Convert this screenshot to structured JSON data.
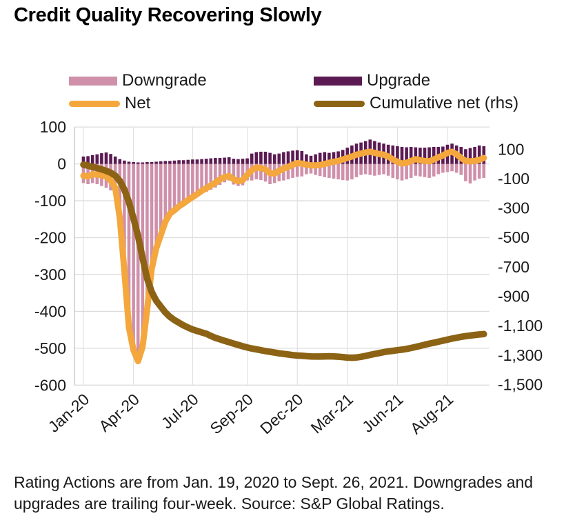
{
  "title": "Credit Quality Recovering Slowly",
  "legend": {
    "items": [
      {
        "label": "Downgrade",
        "swatch": "bar",
        "color": "#cf90aa"
      },
      {
        "label": "Upgrade",
        "swatch": "bar",
        "color": "#5b1a52"
      },
      {
        "label": "Net",
        "swatch": "line",
        "color": "#f4a73c"
      },
      {
        "label": "Cumulative net (rhs)",
        "swatch": "line",
        "color": "#8c6315"
      }
    ]
  },
  "footnote": {
    "line1": "Rating Actions are from Jan. 19, 2020 to Sept. 26, 2021. Downgrades and",
    "line2": "upgrades are trailing four-week. Source: S&P Global Ratings."
  },
  "chart_data": {
    "type": "combo-bar-line",
    "n_points": 89,
    "x_tick_indices": [
      0,
      11,
      24,
      36,
      47,
      58,
      69,
      80
    ],
    "x_tick_labels": [
      "Jan-20",
      "Apr-20",
      "Jul-20",
      "Sep-20",
      "Dec-20",
      "Mar-21",
      "Jun-21",
      "Aug-21"
    ],
    "left_axis": {
      "ticks": [
        100,
        0,
        -100,
        -200,
        -300,
        -400,
        -500,
        -600
      ],
      "range": [
        100,
        -600
      ]
    },
    "right_axis": {
      "tick_values": [
        100,
        -100,
        -300,
        -500,
        -700,
        -900,
        -1100,
        -1300,
        -1500
      ],
      "tick_labels": [
        "100",
        "-100",
        "-300",
        "-500",
        "-700",
        "-900",
        "-1,100",
        "-1,300",
        "-1,500"
      ],
      "range": [
        100,
        -1500
      ]
    },
    "grid": true,
    "legend_position": "top",
    "colors": {
      "grid": "#dcdcdc",
      "axis": "#c4c4c4",
      "text": "#1a1a1a"
    },
    "series": [
      {
        "name": "Downgrade",
        "type": "bar",
        "axis": "left",
        "color": "#cf90aa",
        "values": [
          -52,
          -55,
          -52,
          -55,
          -60,
          -65,
          -72,
          -85,
          -160,
          -300,
          -450,
          -510,
          -530,
          -500,
          -400,
          -290,
          -235,
          -200,
          -165,
          -131,
          -122,
          -116,
          -111,
          -101,
          -94,
          -87,
          -82,
          -76,
          -70,
          -64,
          -57,
          -50,
          -45,
          -56,
          -60,
          -58,
          -45,
          -45,
          -42,
          -44,
          -48,
          -55,
          -52,
          -47,
          -45,
          -42,
          -38,
          -35,
          -34,
          -28,
          -26,
          -30,
          -33,
          -36,
          -38,
          -40,
          -42,
          -44,
          -45,
          -42,
          -36,
          -30,
          -28,
          -30,
          -32,
          -30,
          -28,
          -32,
          -38,
          -42,
          -45,
          -42,
          -38,
          -32,
          -34,
          -36,
          -38,
          -34,
          -28,
          -24,
          -22,
          -20,
          -24,
          -30,
          -47,
          -53,
          -45,
          -40,
          -38
        ]
      },
      {
        "name": "Upgrade",
        "type": "bar",
        "axis": "left",
        "color": "#5b1a52",
        "values": [
          20,
          21,
          24,
          26,
          29,
          31,
          27,
          20,
          13,
          9,
          6,
          5,
          4,
          4,
          5,
          5,
          6,
          7,
          8,
          8,
          9,
          10,
          10,
          11,
          12,
          12,
          13,
          14,
          15,
          16,
          16,
          17,
          18,
          14,
          13,
          14,
          15,
          28,
          32,
          33,
          33,
          30,
          26,
          28,
          32,
          34,
          36,
          37,
          35,
          26,
          22,
          26,
          30,
          32,
          30,
          32,
          34,
          38,
          44,
          50,
          55,
          58,
          62,
          66,
          62,
          58,
          55,
          52,
          50,
          48,
          46,
          45,
          46,
          45,
          44,
          44,
          45,
          46,
          46,
          47,
          52,
          55,
          50,
          46,
          40,
          43,
          46,
          50,
          48
        ]
      },
      {
        "name": "Net",
        "type": "line",
        "axis": "left",
        "color": "#f4a73c",
        "values": [
          -32,
          -34,
          -28,
          -29,
          -31,
          -34,
          -45,
          -65,
          -147,
          -291,
          -444,
          -505,
          -535,
          -496,
          -395,
          -285,
          -229,
          -193,
          -157,
          -135,
          -126,
          -115,
          -107,
          -98,
          -90,
          -82,
          -73,
          -66,
          -58,
          -51,
          -42,
          -36,
          -33,
          -42,
          -47,
          -44,
          -30,
          -17,
          -10,
          -11,
          -15,
          -25,
          -26,
          -19,
          -13,
          -8,
          -2,
          2,
          1,
          -2,
          -4,
          -4,
          -3,
          0,
          3,
          6,
          8,
          12,
          16,
          20,
          25,
          28,
          31,
          33,
          30,
          27,
          25,
          20,
          12,
          6,
          1,
          3,
          8,
          13,
          10,
          8,
          7,
          12,
          18,
          23,
          30,
          33,
          26,
          16,
          8,
          7,
          8,
          11,
          16
        ]
      },
      {
        "name": "Cumulative net (rhs)",
        "type": "line",
        "axis": "right",
        "color": "#8c6315",
        "values": [
          -5,
          -12,
          -20,
          -28,
          -37,
          -47,
          -60,
          -80,
          -115,
          -175,
          -260,
          -370,
          -490,
          -640,
          -780,
          -870,
          -930,
          -970,
          -1010,
          -1040,
          -1062,
          -1080,
          -1098,
          -1113,
          -1126,
          -1136,
          -1146,
          -1155,
          -1170,
          -1183,
          -1193,
          -1203,
          -1212,
          -1222,
          -1231,
          -1240,
          -1248,
          -1255,
          -1261,
          -1267,
          -1273,
          -1278,
          -1283,
          -1288,
          -1292,
          -1296,
          -1300,
          -1303,
          -1305,
          -1307,
          -1309,
          -1310,
          -1310,
          -1309,
          -1308,
          -1309,
          -1311,
          -1314,
          -1317,
          -1318,
          -1316,
          -1312,
          -1306,
          -1299,
          -1292,
          -1286,
          -1280,
          -1275,
          -1271,
          -1267,
          -1263,
          -1258,
          -1252,
          -1245,
          -1238,
          -1230,
          -1223,
          -1216,
          -1209,
          -1202,
          -1195,
          -1188,
          -1182,
          -1176,
          -1171,
          -1167,
          -1163,
          -1160,
          -1157
        ]
      }
    ]
  }
}
